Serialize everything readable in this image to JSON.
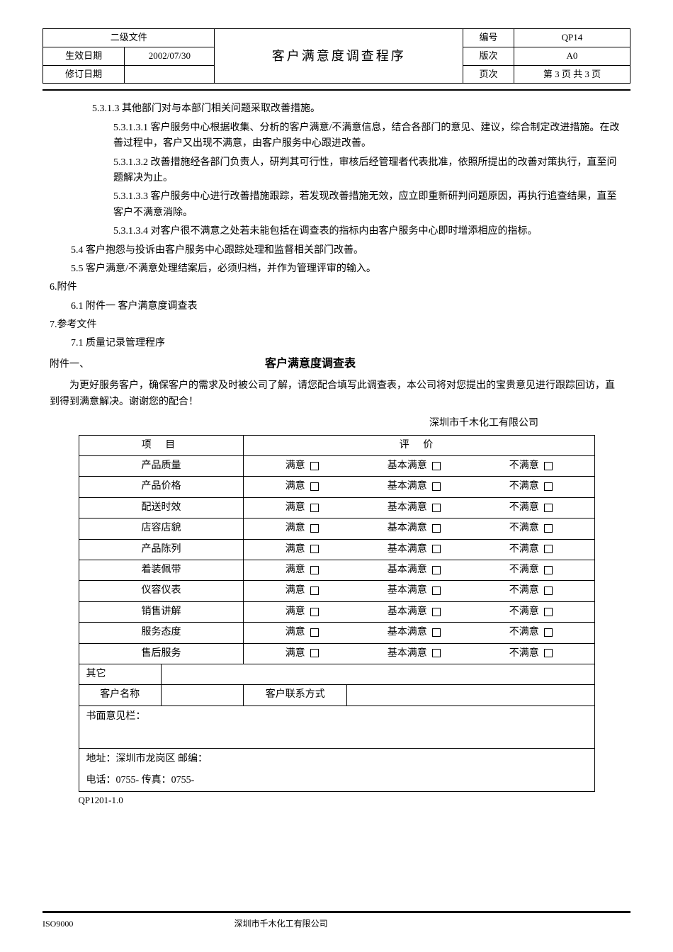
{
  "header": {
    "doc_level": "二级文件",
    "effective_date_label": "生效日期",
    "effective_date": "2002/07/30",
    "revision_date_label": "修订日期",
    "revision_date": "",
    "title": "客户满意度调查程序",
    "code_label": "编号",
    "code": "QP14",
    "version_label": "版次",
    "version": "A0",
    "page_label": "页次",
    "page": "第 3 页 共 3 页"
  },
  "sections": {
    "s5_3_1_3": "5.3.1.3 其他部门对与本部门相关问题采取改善措施。",
    "s5_3_1_3_1": "5.3.1.3.1 客户服务中心根据收集、分析的客户满意/不满意信息，结合各部门的意见、建议，综合制定改进措施。在改善过程中，客户又出现不满意，由客户服务中心跟进改善。",
    "s5_3_1_3_2": "5.3.1.3.2 改善措施经各部门负责人，研判其可行性，审核后经管理者代表批准，依照所提出的改善对策执行，直至问题解决为止。",
    "s5_3_1_3_3": "5.3.1.3.3  客户服务中心进行改善措施跟踪，若发现改善措施无效，应立即重新研判问题原因，再执行追查结果，直至客户不满意消除。",
    "s5_3_1_3_4": "5.3.1.3.4  对客户很不满意之处若未能包括在调查表的指标内由客户服务中心即时增添相应的指标。",
    "s5_4": "5.4 客户抱怨与投诉由客户服务中心跟踪处理和监督相关部门改善。",
    "s5_5": "5.5 客户满意/不满意处理结案后，必须归档，并作为管理评审的输入。",
    "s6": "6.附件",
    "s6_1": "6.1 附件一 客户满意度调查表",
    "s7": "7.参考文件",
    "s7_1": "7.1 质量记录管理程序"
  },
  "attachment": {
    "label": "附件一、",
    "title": "客户满意度调查表",
    "intro": "为更好服务客户，确保客户的需求及时被公司了解，请您配合填写此调查表，本公司将对您提出的宝贵意见进行跟踪回访，直到得到满意解决。谢谢您的配合！",
    "company": "深圳市千木化工有限公司"
  },
  "survey": {
    "col_item": "项    目",
    "col_rating": "评    价",
    "opt_satisfied": "满意",
    "opt_basic": "基本满意",
    "opt_unsatisfied": "不满意",
    "items": [
      "产品质量",
      "产品价格",
      "配送时效",
      "店容店貌",
      "产品陈列",
      "着装佩带",
      "仪容仪表",
      "销售讲解",
      "服务态度",
      "售后服务"
    ],
    "other": "其它",
    "customer_name_label": "客户名称",
    "customer_contact_label": "客户联系方式",
    "written_opinion_label": "书面意见栏：",
    "address": "地址：深圳市龙岗区      邮编：",
    "phone": "电话：0755-      传真：0755-",
    "form_code": "QP1201-1.0"
  },
  "footer": {
    "left": "ISO9000",
    "center": "深圳市千木化工有限公司"
  }
}
